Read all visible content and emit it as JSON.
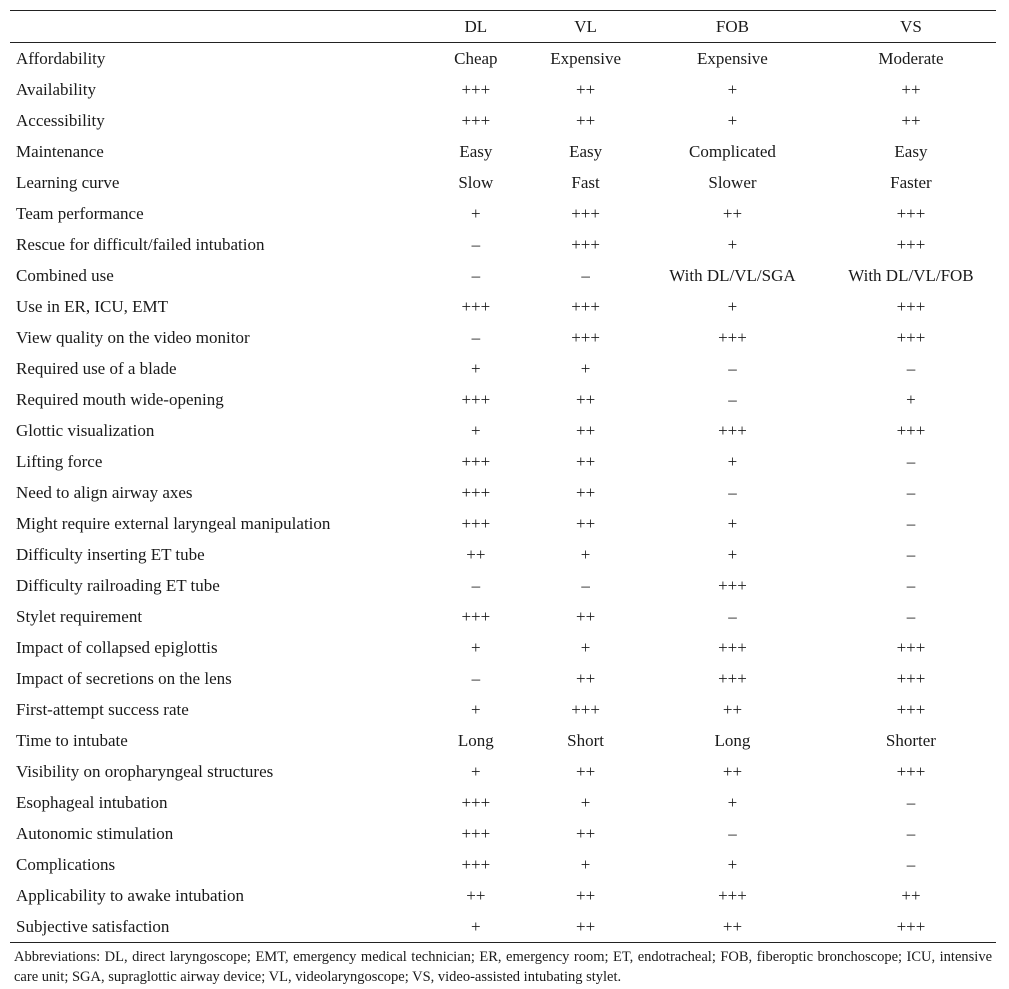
{
  "table": {
    "columns": [
      "",
      "DL",
      "VL",
      "FOB",
      "VS"
    ],
    "rows": [
      [
        "Affordability",
        "Cheap",
        "Expensive",
        "Expensive",
        "Moderate"
      ],
      [
        "Availability",
        "+++",
        "++",
        "+",
        "++"
      ],
      [
        "Accessibility",
        "+++",
        "++",
        "+",
        "++"
      ],
      [
        "Maintenance",
        "Easy",
        "Easy",
        "Complicated",
        "Easy"
      ],
      [
        "Learning curve",
        "Slow",
        "Fast",
        "Slower",
        "Faster"
      ],
      [
        "Team performance",
        "+",
        "+++",
        "++",
        "+++"
      ],
      [
        "Rescue for difficult/failed intubation",
        "–",
        "+++",
        "+",
        "+++"
      ],
      [
        "Combined use",
        "–",
        "–",
        "With DL/VL/SGA",
        "With DL/VL/FOB"
      ],
      [
        "Use in ER, ICU, EMT",
        "+++",
        "+++",
        "+",
        "+++"
      ],
      [
        "View quality on the video monitor",
        "–",
        "+++",
        "+++",
        "+++"
      ],
      [
        "Required use of a blade",
        "+",
        "+",
        "–",
        "–"
      ],
      [
        "Required mouth wide-opening",
        "+++",
        "++",
        "–",
        "+"
      ],
      [
        "Glottic visualization",
        "+",
        "++",
        "+++",
        "+++"
      ],
      [
        "Lifting force",
        "+++",
        "++",
        "+",
        "–"
      ],
      [
        "Need to align airway axes",
        "+++",
        "++",
        "–",
        "–"
      ],
      [
        "Might require external laryngeal manipulation",
        "+++",
        "++",
        "+",
        "–"
      ],
      [
        "Difficulty inserting ET tube",
        "++",
        "+",
        "+",
        "–"
      ],
      [
        "Difficulty railroading ET tube",
        "–",
        "–",
        "+++",
        "–"
      ],
      [
        "Stylet requirement",
        "+++",
        "++",
        "–",
        "–"
      ],
      [
        "Impact of collapsed epiglottis",
        "+",
        "+",
        "+++",
        "+++"
      ],
      [
        "Impact of secretions on the lens",
        "–",
        "++",
        "+++",
        "+++"
      ],
      [
        "First-attempt success rate",
        "+",
        "+++",
        "++",
        "+++"
      ],
      [
        "Time to intubate",
        "Long",
        "Short",
        "Long",
        "Shorter"
      ],
      [
        "Visibility on oropharyngeal structures",
        "+",
        "++",
        "++",
        "+++"
      ],
      [
        "Esophageal intubation",
        "+++",
        "+",
        "+",
        "–"
      ],
      [
        "Autonomic stimulation",
        "+++",
        "++",
        "–",
        "–"
      ],
      [
        "Complications",
        "+++",
        "+",
        "+",
        "–"
      ],
      [
        "Applicability to awake intubation",
        "++",
        "++",
        "+++",
        "++"
      ],
      [
        "Subjective satisfaction",
        "+",
        "++",
        "++",
        "+++"
      ]
    ]
  },
  "footnote": "Abbreviations: DL, direct laryngoscope; EMT, emergency medical technician; ER, emergency room; ET, endotracheal; FOB, fiberoptic broncho­scope; ICU, intensive care unit; SGA, supraglottic airway device; VL, videolaryngoscope; VS, video-assisted intubating stylet."
}
